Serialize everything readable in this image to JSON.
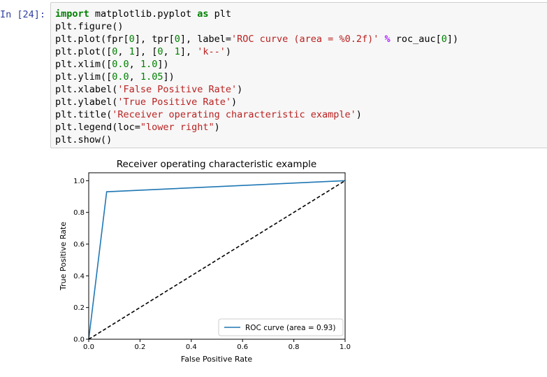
{
  "cell": {
    "prompt": "In [24]:",
    "code_lines": [
      [
        {
          "t": "import",
          "c": "kw"
        },
        {
          "t": " matplotlib.pyplot "
        },
        {
          "t": "as",
          "c": "kw"
        },
        {
          "t": " plt"
        }
      ],
      [
        {
          "t": "plt.figure()"
        }
      ],
      [
        {
          "t": "plt.plot(fpr["
        },
        {
          "t": "0",
          "c": "num"
        },
        {
          "t": "], tpr["
        },
        {
          "t": "0",
          "c": "num"
        },
        {
          "t": "], label="
        },
        {
          "t": "'ROC curve (area = %0.2f)'",
          "c": "str"
        },
        {
          "t": " "
        },
        {
          "t": "%",
          "c": "op"
        },
        {
          "t": " roc_auc["
        },
        {
          "t": "0",
          "c": "num"
        },
        {
          "t": "])"
        }
      ],
      [
        {
          "t": "plt.plot(["
        },
        {
          "t": "0",
          "c": "num"
        },
        {
          "t": ", "
        },
        {
          "t": "1",
          "c": "num"
        },
        {
          "t": "], ["
        },
        {
          "t": "0",
          "c": "num"
        },
        {
          "t": ", "
        },
        {
          "t": "1",
          "c": "num"
        },
        {
          "t": "], "
        },
        {
          "t": "'k--'",
          "c": "str"
        },
        {
          "t": ")"
        }
      ],
      [
        {
          "t": "plt.xlim(["
        },
        {
          "t": "0.0",
          "c": "num"
        },
        {
          "t": ", "
        },
        {
          "t": "1.0",
          "c": "num"
        },
        {
          "t": "])"
        }
      ],
      [
        {
          "t": "plt.ylim(["
        },
        {
          "t": "0.0",
          "c": "num"
        },
        {
          "t": ", "
        },
        {
          "t": "1.05",
          "c": "num"
        },
        {
          "t": "])"
        }
      ],
      [
        {
          "t": "plt.xlabel("
        },
        {
          "t": "'False Positive Rate'",
          "c": "str"
        },
        {
          "t": ")"
        }
      ],
      [
        {
          "t": "plt.ylabel("
        },
        {
          "t": "'True Positive Rate'",
          "c": "str"
        },
        {
          "t": ")"
        }
      ],
      [
        {
          "t": "plt.title("
        },
        {
          "t": "'Receiver operating characteristic example'",
          "c": "str"
        },
        {
          "t": ")"
        }
      ],
      [
        {
          "t": "plt.legend(loc="
        },
        {
          "t": "\"lower right\"",
          "c": "str"
        },
        {
          "t": ")"
        }
      ],
      [
        {
          "t": "plt.show()"
        }
      ]
    ]
  },
  "chart_data": {
    "type": "line",
    "title": "Receiver operating characteristic example",
    "xlabel": "False Positive Rate",
    "ylabel": "True Positive Rate",
    "xlim": [
      0.0,
      1.0
    ],
    "ylim": [
      0.0,
      1.05
    ],
    "xticks": [
      "0.0",
      "0.2",
      "0.4",
      "0.6",
      "0.8",
      "1.0"
    ],
    "yticks": [
      "0.0",
      "0.2",
      "0.4",
      "0.6",
      "0.8",
      "1.0"
    ],
    "grid": false,
    "legend_position": "lower right",
    "series": [
      {
        "name": "ROC curve (area = 0.93)",
        "x": [
          0.0,
          0.07,
          1.0
        ],
        "y": [
          0.0,
          0.93,
          1.0
        ],
        "color": "#1f77b4",
        "style": "solid"
      },
      {
        "x": [
          0.0,
          1.0
        ],
        "y": [
          0.0,
          1.0
        ],
        "color": "#000000",
        "style": "dashed"
      }
    ]
  }
}
